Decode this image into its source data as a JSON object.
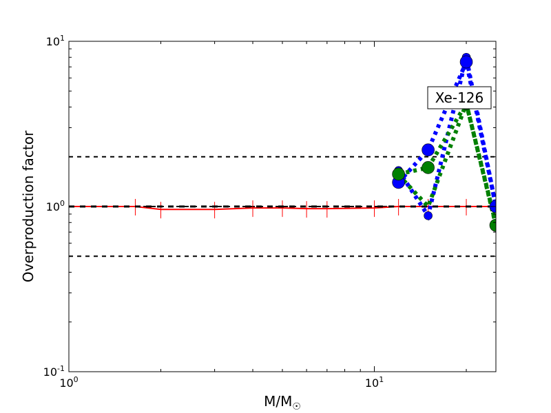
{
  "chart_data": {
    "type": "line",
    "title": "",
    "xlabel": "M/M",
    "xlabel_sub": "☉",
    "ylabel": "Overproduction factor",
    "xscale": "log",
    "yscale": "log",
    "xlim": [
      1,
      25
    ],
    "ylim": [
      0.1,
      10
    ],
    "x_ticks": [
      {
        "v": 1,
        "base": "10",
        "exp": "0"
      },
      {
        "v": 10,
        "base": "10",
        "exp": "1"
      }
    ],
    "y_ticks": [
      {
        "v": 0.1,
        "base": "10",
        "exp": "-1"
      },
      {
        "v": 1,
        "base": "10",
        "exp": "0"
      },
      {
        "v": 10,
        "base": "10",
        "exp": "1"
      }
    ],
    "annotation": "Xe-126",
    "reference_lines": [
      2,
      1,
      0.5
    ],
    "colors": {
      "ref": "#000000",
      "red": "#ff0000",
      "blue": "#0000ff",
      "green": "#008000"
    },
    "red_series": {
      "x": [
        1,
        1.65,
        2,
        3,
        4,
        5,
        6,
        7,
        10,
        12,
        15,
        20,
        25
      ],
      "y": [
        1,
        1,
        0.96,
        0.96,
        0.98,
        0.98,
        0.97,
        0.97,
        0.98,
        1,
        1,
        1,
        1
      ]
    },
    "series": [
      {
        "color": "blue",
        "style": "dotted",
        "x": [
          12,
          15,
          20,
          25
        ],
        "y": [
          1.65,
          0.88,
          8.0,
          1.0
        ],
        "marker": "small"
      },
      {
        "color": "blue",
        "style": "dotted",
        "x": [
          12,
          15,
          20,
          25
        ],
        "y": [
          1.4,
          2.2,
          7.5,
          1.0
        ],
        "marker": "large"
      },
      {
        "color": "green",
        "style": "dotted",
        "x": [
          12,
          15,
          20,
          25
        ],
        "y": [
          1.55,
          1.0,
          4.2,
          0.78
        ],
        "marker": "none"
      },
      {
        "color": "green",
        "style": "dotted",
        "x": [
          12,
          15,
          20,
          25
        ],
        "y": [
          1.57,
          1.72,
          4.2,
          0.77
        ],
        "marker": "large"
      }
    ]
  }
}
